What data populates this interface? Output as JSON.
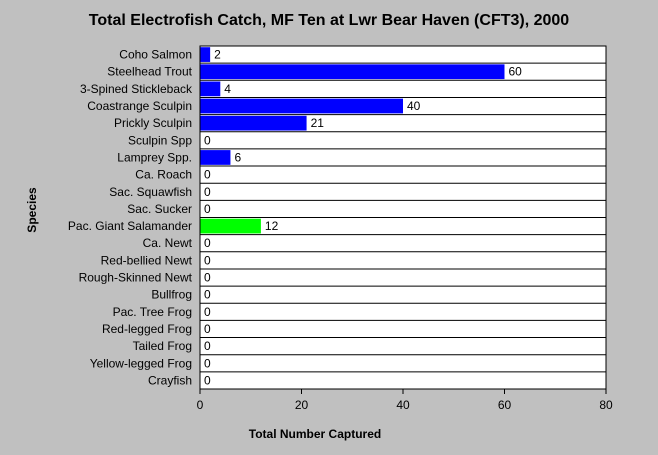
{
  "chart_data": {
    "type": "bar",
    "orientation": "horizontal",
    "title": "Total Electrofish Catch, MF Ten at Lwr Bear Haven (CFT3), 2000",
    "xlabel": "Total Number Captured",
    "ylabel": "Species",
    "xlim": [
      0,
      80
    ],
    "xticks": [
      0,
      20,
      40,
      60,
      80
    ],
    "grid": "horizontal",
    "categories": [
      "Coho Salmon",
      "Steelhead Trout",
      "3-Spined Stickleback",
      "Coastrange Sculpin",
      "Prickly Sculpin",
      "Sculpin Spp",
      "Lamprey Spp.",
      "Ca. Roach",
      "Sac. Squawfish",
      "Sac. Sucker",
      "Pac. Giant Salamander",
      "Ca. Newt",
      "Red-bellied Newt",
      "Rough-Skinned Newt",
      "Bullfrog",
      "Pac. Tree Frog",
      "Red-legged Frog",
      "Tailed Frog",
      "Yellow-legged Frog",
      "Crayfish"
    ],
    "values": [
      2,
      60,
      4,
      40,
      21,
      0,
      6,
      0,
      0,
      0,
      12,
      0,
      0,
      0,
      0,
      0,
      0,
      0,
      0,
      0
    ],
    "colors": [
      "#0000ff",
      "#0000ff",
      "#0000ff",
      "#0000ff",
      "#0000ff",
      "#0000ff",
      "#0000ff",
      "#0000ff",
      "#0000ff",
      "#0000ff",
      "#00ff00",
      "#0000ff",
      "#0000ff",
      "#0000ff",
      "#0000ff",
      "#0000ff",
      "#0000ff",
      "#0000ff",
      "#0000ff",
      "#0000ff"
    ],
    "background_color": "#c0c0c0",
    "plot_background_color": "#ffffff"
  }
}
